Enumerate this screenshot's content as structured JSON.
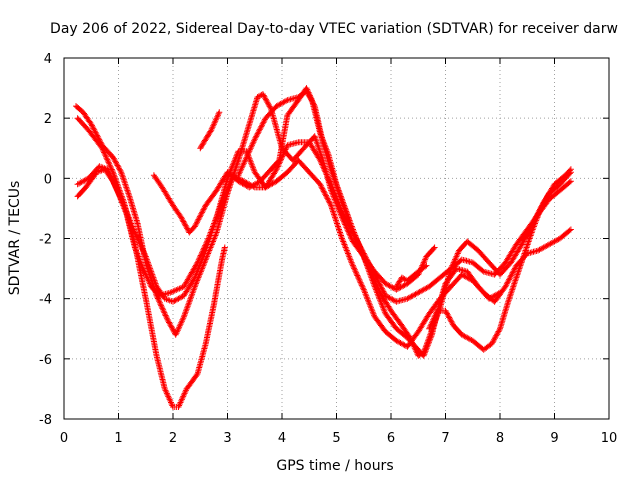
{
  "chart_data": {
    "type": "scatter",
    "title": "Day 206 of 2022, Sidereal Day-to-day VTEC variation (SDTVAR) for receiver darw",
    "xlabel": "GPS time / hours",
    "ylabel": "SDTVAR / TECUs",
    "xlim": [
      0,
      10
    ],
    "ylim": [
      -8,
      4
    ],
    "xticks": [
      "0",
      "1",
      "2",
      "3",
      "4",
      "5",
      "6",
      "7",
      "8",
      "9",
      "10"
    ],
    "yticks": [
      "-8",
      "-6",
      "-4",
      "-2",
      "0",
      "2",
      "4"
    ],
    "grid": true,
    "legend": "none",
    "marker": "plus",
    "color": "#ff0000",
    "series": [
      {
        "points": [
          [
            0.22,
            2.4
          ],
          [
            0.35,
            2.2
          ],
          [
            0.5,
            1.8
          ],
          [
            0.7,
            1.1
          ],
          [
            0.9,
            0.7
          ],
          [
            1.05,
            0.2
          ],
          [
            1.2,
            -0.6
          ],
          [
            1.35,
            -1.5
          ],
          [
            1.5,
            -2.8
          ],
          [
            1.7,
            -3.9
          ],
          [
            1.9,
            -4.7
          ],
          [
            2.05,
            -5.2
          ],
          [
            2.2,
            -4.6
          ],
          [
            2.4,
            -3.6
          ],
          [
            2.6,
            -2.7
          ],
          [
            2.8,
            -1.8
          ],
          [
            3.0,
            -0.5
          ],
          [
            3.2,
            0.6
          ],
          [
            3.4,
            1.8
          ],
          [
            3.55,
            2.7
          ],
          [
            3.65,
            2.8
          ],
          [
            3.8,
            2.3
          ],
          [
            4.0,
            1.0
          ],
          [
            4.2,
            0.6
          ],
          [
            4.4,
            1.0
          ],
          [
            4.6,
            1.4
          ],
          [
            4.75,
            0.6
          ],
          [
            4.9,
            -0.4
          ],
          [
            5.1,
            -1.3
          ],
          [
            5.3,
            -2.1
          ],
          [
            5.5,
            -2.6
          ],
          [
            5.7,
            -3.1
          ],
          [
            5.9,
            -3.5
          ],
          [
            6.1,
            -3.7
          ],
          [
            6.3,
            -3.5
          ],
          [
            6.5,
            -3.2
          ],
          [
            6.65,
            -2.6
          ],
          [
            6.8,
            -2.3
          ]
        ]
      },
      {
        "points": [
          [
            0.25,
            2.0
          ],
          [
            0.45,
            1.6
          ],
          [
            0.7,
            1.0
          ],
          [
            0.9,
            0.2
          ],
          [
            1.1,
            -0.8
          ],
          [
            1.3,
            -2.2
          ],
          [
            1.5,
            -4.0
          ],
          [
            1.7,
            -5.9
          ],
          [
            1.85,
            -7.0
          ],
          [
            2.0,
            -7.6
          ],
          [
            2.1,
            -7.6
          ],
          [
            2.25,
            -7.0
          ],
          [
            2.45,
            -6.5
          ],
          [
            2.6,
            -5.5
          ],
          [
            2.75,
            -4.2
          ],
          [
            2.9,
            -2.7
          ],
          [
            2.95,
            -2.3
          ]
        ]
      },
      {
        "points": [
          [
            0.25,
            -0.2
          ],
          [
            0.45,
            0.0
          ],
          [
            0.65,
            0.4
          ],
          [
            0.8,
            0.3
          ],
          [
            1.0,
            -0.5
          ],
          [
            1.15,
            -1.2
          ],
          [
            1.3,
            -2.3
          ],
          [
            1.45,
            -3.0
          ],
          [
            1.6,
            -3.6
          ],
          [
            1.75,
            -3.9
          ],
          [
            1.95,
            -3.8
          ],
          [
            2.2,
            -3.6
          ],
          [
            2.45,
            -2.8
          ],
          [
            2.65,
            -2.0
          ],
          [
            2.9,
            -0.8
          ],
          [
            3.1,
            0.1
          ],
          [
            3.3,
            -0.1
          ],
          [
            3.5,
            -0.3
          ],
          [
            3.7,
            -0.3
          ],
          [
            3.9,
            -0.1
          ],
          [
            4.1,
            0.2
          ],
          [
            4.3,
            0.6
          ],
          [
            4.5,
            0.2
          ],
          [
            4.7,
            -0.2
          ],
          [
            4.9,
            -0.9
          ],
          [
            5.1,
            -2.0
          ],
          [
            5.3,
            -2.9
          ],
          [
            5.5,
            -3.7
          ],
          [
            5.7,
            -4.6
          ],
          [
            5.9,
            -5.1
          ],
          [
            6.1,
            -5.4
          ],
          [
            6.3,
            -5.6
          ],
          [
            6.5,
            -5.1
          ],
          [
            6.7,
            -4.5
          ],
          [
            6.9,
            -4.0
          ],
          [
            7.1,
            -3.6
          ],
          [
            7.3,
            -3.2
          ],
          [
            7.5,
            -3.4
          ],
          [
            7.7,
            -3.8
          ],
          [
            7.9,
            -4.1
          ],
          [
            8.1,
            -3.6
          ],
          [
            8.3,
            -2.9
          ],
          [
            8.5,
            -2.5
          ],
          [
            8.7,
            -2.4
          ],
          [
            8.9,
            -2.2
          ],
          [
            9.1,
            -2.0
          ],
          [
            9.3,
            -1.7
          ]
        ]
      },
      {
        "points": [
          [
            0.25,
            -0.6
          ],
          [
            0.4,
            -0.3
          ],
          [
            0.6,
            0.2
          ],
          [
            0.75,
            0.3
          ],
          [
            0.9,
            -0.1
          ],
          [
            1.1,
            -0.9
          ],
          [
            1.3,
            -1.8
          ],
          [
            1.5,
            -2.6
          ],
          [
            1.7,
            -3.6
          ],
          [
            1.85,
            -4.0
          ],
          [
            2.0,
            -4.1
          ],
          [
            2.2,
            -3.9
          ],
          [
            2.4,
            -3.3
          ],
          [
            2.6,
            -2.4
          ],
          [
            2.8,
            -1.3
          ],
          [
            3.0,
            0.0
          ],
          [
            3.2,
            0.9
          ],
          [
            3.35,
            0.9
          ],
          [
            3.5,
            0.2
          ],
          [
            3.7,
            -0.3
          ],
          [
            3.9,
            0.3
          ],
          [
            4.1,
            1.1
          ],
          [
            4.3,
            1.2
          ],
          [
            4.5,
            1.2
          ],
          [
            4.7,
            0.6
          ],
          [
            4.9,
            -0.2
          ],
          [
            5.1,
            -1.1
          ],
          [
            5.3,
            -1.8
          ],
          [
            5.5,
            -2.5
          ],
          [
            5.7,
            -3.2
          ],
          [
            5.9,
            -3.9
          ],
          [
            6.1,
            -4.1
          ],
          [
            6.3,
            -4.0
          ],
          [
            6.5,
            -3.8
          ],
          [
            6.7,
            -3.6
          ],
          [
            6.9,
            -3.3
          ],
          [
            7.1,
            -3.0
          ],
          [
            7.3,
            -2.7
          ],
          [
            7.5,
            -2.8
          ],
          [
            7.7,
            -3.1
          ],
          [
            7.9,
            -3.2
          ],
          [
            8.1,
            -2.8
          ],
          [
            8.3,
            -2.2
          ],
          [
            8.5,
            -1.7
          ],
          [
            8.7,
            -1.2
          ],
          [
            8.9,
            -0.7
          ],
          [
            9.1,
            -0.4
          ],
          [
            9.3,
            -0.1
          ]
        ]
      },
      {
        "points": [
          [
            1.65,
            0.1
          ],
          [
            1.8,
            -0.3
          ],
          [
            2.0,
            -0.9
          ],
          [
            2.15,
            -1.3
          ],
          [
            2.3,
            -1.8
          ],
          [
            2.4,
            -1.6
          ],
          [
            2.6,
            -0.9
          ],
          [
            2.8,
            -0.4
          ],
          [
            3.0,
            0.2
          ],
          [
            3.2,
            -0.1
          ],
          [
            3.4,
            -0.3
          ],
          [
            3.6,
            -0.1
          ],
          [
            3.8,
            0.3
          ],
          [
            3.95,
            0.6
          ],
          [
            4.1,
            2.1
          ],
          [
            4.3,
            2.6
          ],
          [
            4.45,
            3.0
          ],
          [
            4.55,
            2.6
          ],
          [
            4.7,
            1.5
          ],
          [
            4.85,
            0.8
          ],
          [
            5.0,
            -0.2
          ],
          [
            5.2,
            -1.2
          ],
          [
            5.4,
            -2.2
          ],
          [
            5.6,
            -3.0
          ],
          [
            5.8,
            -3.8
          ],
          [
            6.0,
            -4.4
          ],
          [
            6.2,
            -4.9
          ],
          [
            6.35,
            -5.3
          ],
          [
            6.5,
            -5.9
          ],
          [
            6.6,
            -5.8
          ],
          [
            6.7,
            -5.3
          ],
          [
            6.9,
            -4.3
          ],
          [
            7.1,
            -3.0
          ],
          [
            7.25,
            -2.4
          ],
          [
            7.4,
            -2.1
          ],
          [
            7.6,
            -2.4
          ],
          [
            7.8,
            -2.8
          ],
          [
            8.0,
            -3.2
          ],
          [
            8.2,
            -2.8
          ],
          [
            8.4,
            -2.2
          ],
          [
            8.6,
            -1.5
          ],
          [
            8.8,
            -0.8
          ],
          [
            9.0,
            -0.2
          ],
          [
            9.2,
            0.1
          ],
          [
            9.3,
            0.3
          ]
        ]
      },
      {
        "points": [
          [
            3.2,
            0.1
          ],
          [
            3.35,
            0.7
          ],
          [
            3.5,
            1.3
          ],
          [
            3.7,
            2.0
          ],
          [
            3.9,
            2.4
          ],
          [
            4.1,
            2.6
          ],
          [
            4.3,
            2.7
          ],
          [
            4.45,
            2.9
          ],
          [
            4.6,
            2.4
          ],
          [
            4.75,
            1.2
          ],
          [
            4.9,
            0.3
          ],
          [
            5.1,
            -0.8
          ],
          [
            5.3,
            -1.7
          ],
          [
            5.5,
            -2.6
          ],
          [
            5.7,
            -3.6
          ],
          [
            5.9,
            -4.5
          ],
          [
            6.1,
            -5.0
          ],
          [
            6.3,
            -5.3
          ],
          [
            6.5,
            -5.7
          ],
          [
            6.6,
            -5.9
          ],
          [
            6.75,
            -5.2
          ],
          [
            6.9,
            -4.1
          ],
          [
            7.0,
            -3.5
          ],
          [
            7.2,
            -3.0
          ],
          [
            7.4,
            -3.1
          ],
          [
            7.6,
            -3.6
          ],
          [
            7.8,
            -4.0
          ],
          [
            8.0,
            -3.8
          ]
        ]
      },
      {
        "points": [
          [
            6.7,
            -5.0
          ],
          [
            6.85,
            -4.4
          ],
          [
            7.0,
            -4.4
          ],
          [
            7.15,
            -4.9
          ],
          [
            7.3,
            -5.2
          ],
          [
            7.5,
            -5.4
          ],
          [
            7.7,
            -5.7
          ],
          [
            7.85,
            -5.5
          ],
          [
            8.0,
            -5.0
          ],
          [
            8.15,
            -4.1
          ],
          [
            8.3,
            -3.3
          ],
          [
            8.45,
            -2.5
          ],
          [
            8.6,
            -1.7
          ],
          [
            8.75,
            -1.0
          ],
          [
            8.9,
            -0.5
          ],
          [
            9.1,
            -0.2
          ],
          [
            9.3,
            0.2
          ]
        ]
      },
      {
        "points": [
          [
            2.5,
            1.0
          ],
          [
            2.6,
            1.3
          ],
          [
            2.7,
            1.6
          ],
          [
            2.8,
            2.0
          ],
          [
            2.85,
            2.2
          ]
        ]
      },
      {
        "points": [
          [
            6.1,
            -3.6
          ],
          [
            6.2,
            -3.3
          ],
          [
            6.3,
            -3.4
          ],
          [
            6.5,
            -3.1
          ],
          [
            6.65,
            -2.9
          ]
        ]
      }
    ]
  }
}
